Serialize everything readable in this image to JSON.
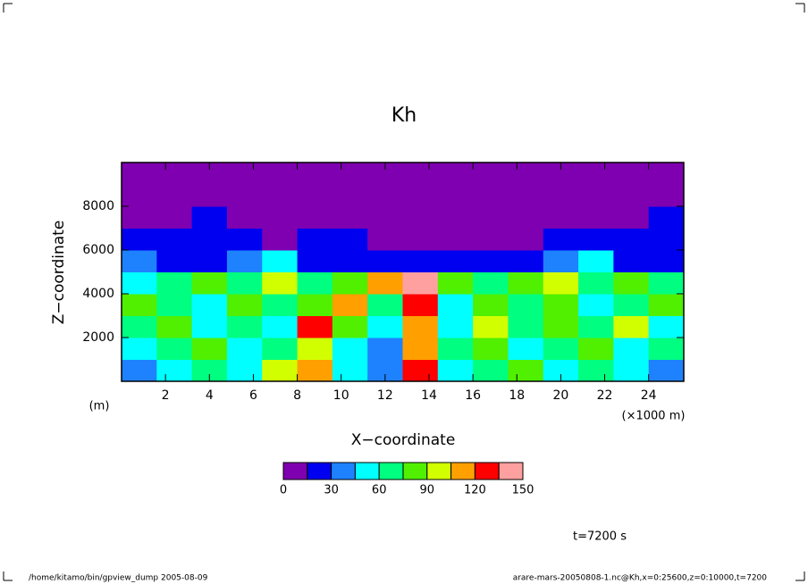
{
  "chart_data": {
    "type": "contour",
    "title": "Kh",
    "xlabel": "X−coordinate",
    "ylabel": "Z−coordinate",
    "x_unit": "(×1000 m)",
    "y_unit": "(m)",
    "time_label": "t=7200 s",
    "footer_left": "/home/kitamo/bin/gpview_dump  2005-08-09",
    "footer_right": "arare-mars-20050808-1.nc@Kh,x=0:25600,z=0:10000,t=7200",
    "xlim": [
      0,
      25.6
    ],
    "xticks": [
      2,
      4,
      6,
      8,
      10,
      12,
      14,
      16,
      18,
      20,
      22,
      24
    ],
    "ylim": [
      0,
      10000
    ],
    "yticks": [
      2000,
      4000,
      6000,
      8000
    ],
    "x": [
      0.8,
      2.4,
      4.0,
      5.6,
      7.2,
      8.8,
      10.4,
      12.0,
      13.6,
      15.2,
      16.8,
      18.4,
      20.0,
      21.6,
      23.2,
      24.8
    ],
    "y": [
      500,
      1500,
      2500,
      3500,
      4500,
      5500,
      6500,
      7500,
      8500,
      9500
    ],
    "z": [
      [
        35,
        50,
        65,
        50,
        95,
        110,
        50,
        35,
        125,
        50,
        65,
        80,
        50,
        65,
        50,
        35
      ],
      [
        50,
        65,
        80,
        50,
        65,
        95,
        50,
        35,
        110,
        65,
        80,
        50,
        65,
        80,
        50,
        65
      ],
      [
        65,
        80,
        50,
        65,
        50,
        125,
        80,
        50,
        110,
        50,
        95,
        65,
        80,
        65,
        95,
        50
      ],
      [
        80,
        65,
        50,
        80,
        65,
        80,
        110,
        65,
        125,
        50,
        80,
        65,
        80,
        50,
        65,
        80
      ],
      [
        50,
        65,
        80,
        65,
        95,
        65,
        80,
        110,
        140,
        80,
        65,
        80,
        95,
        65,
        80,
        65
      ],
      [
        35,
        20,
        20,
        35,
        50,
        20,
        20,
        20,
        20,
        20,
        20,
        20,
        35,
        50,
        20,
        20
      ],
      [
        20,
        20,
        20,
        20,
        5,
        20,
        20,
        5,
        5,
        5,
        5,
        5,
        20,
        20,
        20,
        20
      ],
      [
        5,
        5,
        20,
        5,
        5,
        5,
        5,
        5,
        5,
        5,
        5,
        5,
        5,
        5,
        5,
        20
      ],
      [
        5,
        5,
        5,
        5,
        5,
        5,
        5,
        5,
        5,
        5,
        5,
        5,
        5,
        5,
        5,
        5
      ],
      [
        5,
        5,
        5,
        5,
        5,
        5,
        5,
        5,
        5,
        5,
        5,
        5,
        5,
        5,
        5,
        5
      ]
    ],
    "levels": [
      0,
      15,
      30,
      45,
      60,
      75,
      90,
      105,
      120,
      135,
      150
    ],
    "colors": [
      "#7f00b0",
      "#0000f0",
      "#1e82ff",
      "#00ffff",
      "#00ff80",
      "#50f000",
      "#d2ff00",
      "#ffa000",
      "#ff0000",
      "#ffa0a0"
    ],
    "colorbar_ticks": [
      0,
      30,
      60,
      90,
      120,
      150
    ]
  }
}
